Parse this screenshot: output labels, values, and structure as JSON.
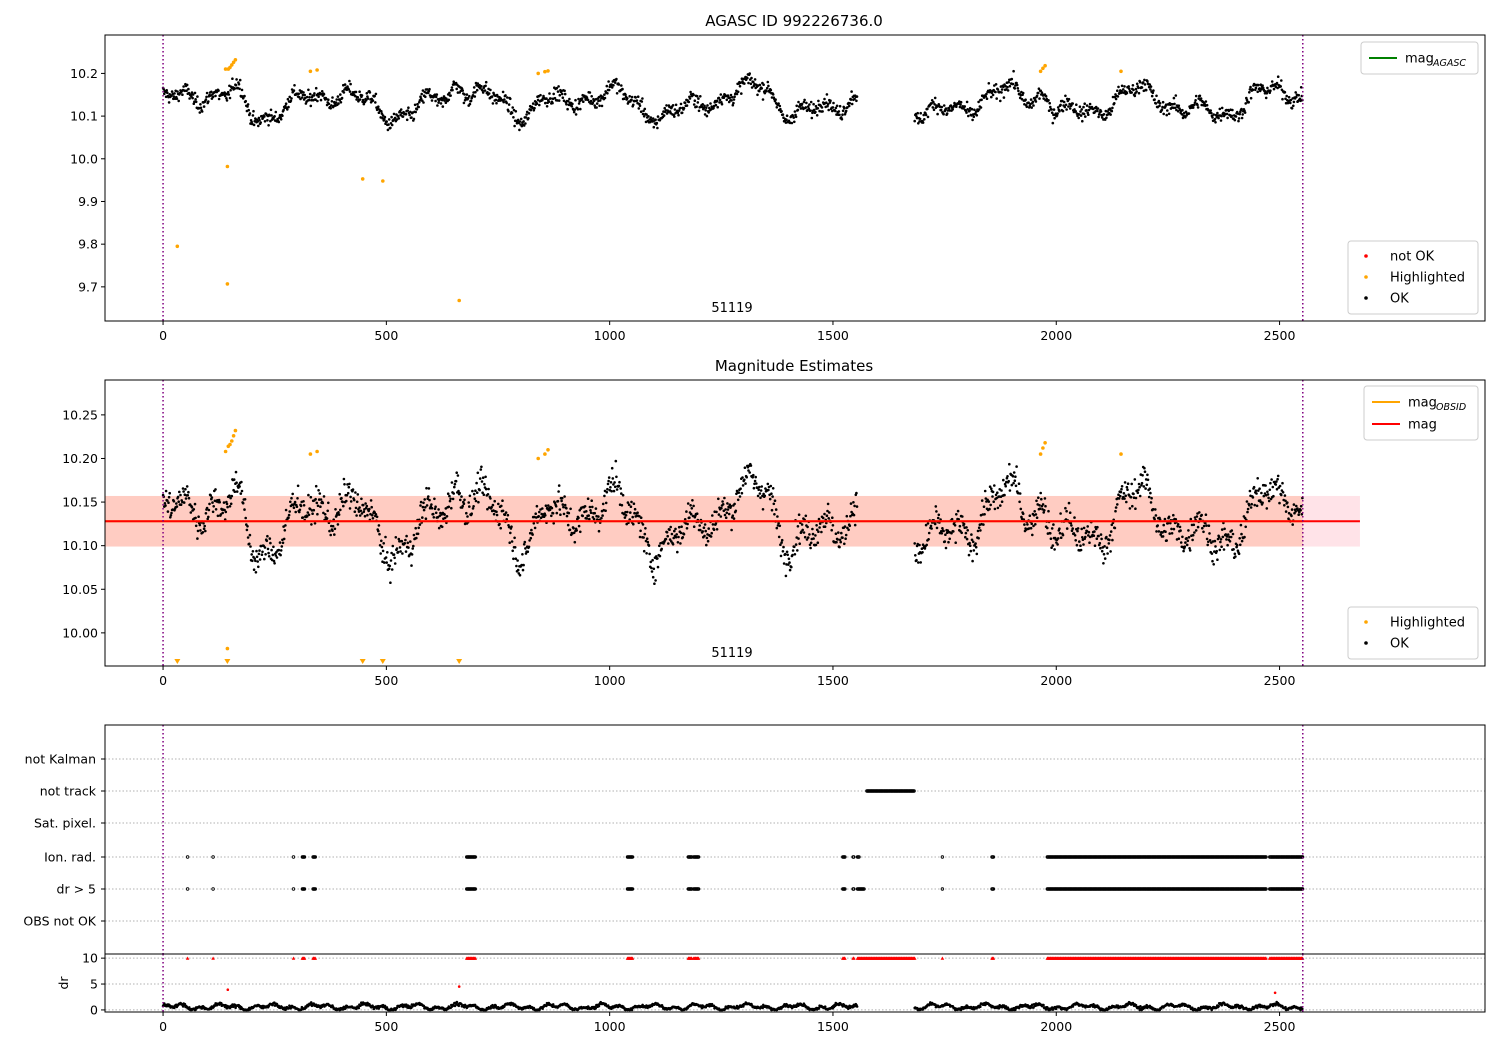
{
  "colors": {
    "ok": "#000000",
    "highlighted": "#ffa500",
    "not_ok": "#ff0000",
    "mag_agasc": "#008000",
    "mag_obsid": "#ffa500",
    "mag": "#ff0000",
    "band_outer": "#ffc0cb",
    "band_inner": "#ffa07a",
    "obs_boundary": "#800080",
    "grid": "#b0b0b0"
  },
  "chart_data": [
    {
      "type": "scatter",
      "title": "AGASC ID 992226736.0",
      "xlim": [
        -130,
        2960
      ],
      "ylim": [
        9.62,
        10.29
      ],
      "x_ticks": [
        "0",
        "500",
        "1000",
        "1500",
        "2000",
        "2500"
      ],
      "y_ticks": [
        "9.7",
        "9.8",
        "9.9",
        "10.0",
        "10.1",
        "10.2"
      ],
      "annotation": "51119",
      "obs_boundaries": [
        0,
        2552
      ],
      "legend_lines": [
        {
          "label": "mag",
          "sub": "AGASC",
          "color": "#008000"
        }
      ],
      "legend_markers": [
        {
          "label": "not OK",
          "color": "#ff0000"
        },
        {
          "label": "Highlighted",
          "color": "#ffa500"
        },
        {
          "label": "OK",
          "color": "#000000"
        }
      ],
      "series": [
        {
          "name": "Highlighted",
          "points": [
            [
              32,
              9.795
            ],
            [
              144,
              9.982
            ],
            [
              144,
              9.707
            ],
            [
              447,
              9.953
            ],
            [
              492,
              9.948
            ],
            [
              663,
              9.668
            ],
            [
              140,
              10.21
            ],
            [
              146,
              10.21
            ],
            [
              150,
              10.214
            ],
            [
              154,
              10.22
            ],
            [
              158,
              10.226
            ],
            [
              162,
              10.232
            ],
            [
              330,
              10.205
            ],
            [
              345,
              10.208
            ],
            [
              840,
              10.2
            ],
            [
              855,
              10.204
            ],
            [
              862,
              10.206
            ],
            [
              1965,
              10.205
            ],
            [
              1970,
              10.212
            ],
            [
              1975,
              10.218
            ],
            [
              2145,
              10.205
            ]
          ]
        },
        {
          "name": "OK",
          "base": 10.13,
          "ranges": [
            [
              0,
              1555
            ],
            [
              1683,
              2552
            ]
          ]
        }
      ]
    },
    {
      "type": "scatter",
      "title": "Magnitude Estimates",
      "xlim": [
        -130,
        2960
      ],
      "ylim": [
        9.962,
        10.29
      ],
      "x_ticks": [
        "0",
        "500",
        "1000",
        "1500",
        "2000",
        "2500"
      ],
      "y_ticks": [
        "10.00",
        "10.05",
        "10.10",
        "10.15",
        "10.20",
        "10.25"
      ],
      "annotation": "51119",
      "obs_boundaries": [
        0,
        2552
      ],
      "mag": 10.128,
      "band_outer": [
        10.099,
        10.157
      ],
      "band_inner": [
        10.099,
        10.157
      ],
      "band_outer_x": [
        -130,
        2680
      ],
      "band_inner_x": [
        -130,
        2552
      ],
      "legend_lines": [
        {
          "label": "mag",
          "sub": "OBSID",
          "color": "#ffa500"
        },
        {
          "label": "mag",
          "sub": "",
          "color": "#ff0000"
        }
      ],
      "legend_markers": [
        {
          "label": "Highlighted",
          "color": "#ffa500"
        },
        {
          "label": "OK",
          "color": "#000000"
        }
      ],
      "series": [
        {
          "name": "Highlighted",
          "points": [
            [
              144,
              9.982
            ],
            [
              140,
              10.208
            ],
            [
              146,
              10.214
            ],
            [
              150,
              10.216
            ],
            [
              154,
              10.22
            ],
            [
              158,
              10.226
            ],
            [
              162,
              10.232
            ],
            [
              330,
              10.205
            ],
            [
              345,
              10.208
            ],
            [
              840,
              10.2
            ],
            [
              855,
              10.205
            ],
            [
              862,
              10.21
            ],
            [
              1965,
              10.205
            ],
            [
              1970,
              10.212
            ],
            [
              1975,
              10.218
            ],
            [
              2145,
              10.205
            ]
          ]
        },
        {
          "name": "Highlighted (off-scale)",
          "points": [
            [
              32,
              9.965
            ],
            [
              144,
              9.965
            ],
            [
              447,
              9.965
            ],
            [
              492,
              9.965
            ],
            [
              663,
              9.965
            ]
          ]
        },
        {
          "name": "OK",
          "base": 10.128,
          "ranges": [
            [
              0,
              1555
            ],
            [
              1683,
              2552
            ]
          ]
        }
      ]
    },
    {
      "type": "scatter",
      "title": "",
      "xlim": [
        -130,
        2960
      ],
      "categories": [
        "not Kalman",
        "not track",
        "Sat. pixel.",
        "Ion. rad.",
        "dr > 5",
        "OBS not OK"
      ],
      "obs_boundaries": [
        0,
        2552
      ],
      "flags": {
        "not track": [
          [
            1576,
            1683
          ]
        ],
        "Ion. rad.": [
          [
            55,
            56
          ],
          [
            112,
            113
          ],
          [
            292,
            293
          ],
          [
            312,
            318
          ],
          [
            336,
            342
          ],
          [
            680,
            700
          ],
          [
            1040,
            1052
          ],
          [
            1176,
            1184
          ],
          [
            1188,
            1200
          ],
          [
            1522,
            1527
          ],
          [
            1545,
            1548
          ],
          [
            1555,
            1559
          ],
          [
            1745,
            1746
          ],
          [
            1856,
            1860
          ],
          [
            1980,
            2470
          ],
          [
            2478,
            2552
          ]
        ],
        "dr > 5": [
          [
            55,
            56
          ],
          [
            112,
            113
          ],
          [
            292,
            293
          ],
          [
            312,
            318
          ],
          [
            336,
            342
          ],
          [
            680,
            700
          ],
          [
            1040,
            1052
          ],
          [
            1176,
            1184
          ],
          [
            1188,
            1200
          ],
          [
            1522,
            1527
          ],
          [
            1545,
            1548
          ],
          [
            1555,
            1570
          ],
          [
            1745,
            1746
          ],
          [
            1856,
            1860
          ],
          [
            1980,
            2470
          ],
          [
            2478,
            2552
          ]
        ]
      }
    },
    {
      "type": "scatter",
      "title": "",
      "ylabel": "dr",
      "xlim": [
        -130,
        2960
      ],
      "ylim": [
        -0.4,
        10.8
      ],
      "x_ticks": [
        "0",
        "500",
        "1000",
        "1500",
        "2000",
        "2500"
      ],
      "y_ticks": [
        "0",
        "5",
        "10"
      ],
      "obs_boundaries": [
        0,
        2552
      ],
      "series": [
        {
          "name": "dr > 5",
          "color": "#ff0000",
          "y": 10,
          "ranges": [
            [
              55,
              56
            ],
            [
              112,
              113
            ],
            [
              292,
              293
            ],
            [
              312,
              318
            ],
            [
              336,
              342
            ],
            [
              680,
              700
            ],
            [
              1040,
              1052
            ],
            [
              1176,
              1184
            ],
            [
              1188,
              1200
            ],
            [
              1522,
              1527
            ],
            [
              1545,
              1548
            ],
            [
              1555,
              1683
            ],
            [
              1745,
              1746
            ],
            [
              1856,
              1860
            ],
            [
              1980,
              2470
            ],
            [
              2478,
              2552
            ]
          ]
        },
        {
          "name": "dr outliers",
          "color": "#ff0000",
          "points": [
            [
              145,
              3.9
            ],
            [
              663,
              4.5
            ],
            [
              2490,
              3.3
            ]
          ]
        },
        {
          "name": "dr",
          "color": "#000000",
          "base": 0.6,
          "ranges": [
            [
              0,
              1555
            ],
            [
              1683,
              2552
            ]
          ]
        }
      ]
    }
  ]
}
